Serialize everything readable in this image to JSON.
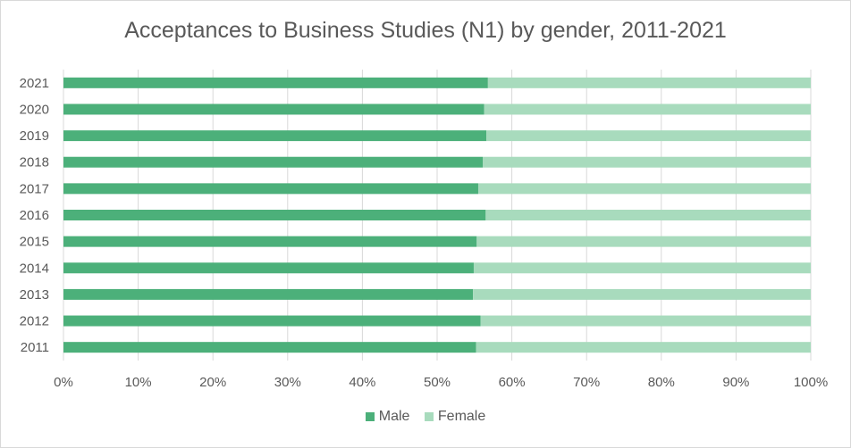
{
  "chart_data": {
    "type": "bar",
    "orientation": "horizontal",
    "stacked": "percent",
    "title": "Acceptances to Business Studies (N1) by gender, 2011-2021",
    "categories": [
      "2021",
      "2020",
      "2019",
      "2018",
      "2017",
      "2016",
      "2015",
      "2014",
      "2013",
      "2012",
      "2011"
    ],
    "series": [
      {
        "name": "Male",
        "color": "#4cb07a",
        "values": [
          0.568,
          0.563,
          0.566,
          0.561,
          0.555,
          0.565,
          0.553,
          0.549,
          0.548,
          0.558,
          0.552
        ]
      },
      {
        "name": "Female",
        "color": "#a8dbbd",
        "values": [
          0.432,
          0.437,
          0.434,
          0.439,
          0.445,
          0.435,
          0.447,
          0.451,
          0.452,
          0.442,
          0.448
        ]
      }
    ],
    "x_ticks": [
      "0%",
      "10%",
      "20%",
      "30%",
      "40%",
      "50%",
      "60%",
      "70%",
      "80%",
      "90%",
      "100%"
    ],
    "xlim": [
      0,
      1
    ],
    "grid": "vertical",
    "legend": "bottom"
  }
}
